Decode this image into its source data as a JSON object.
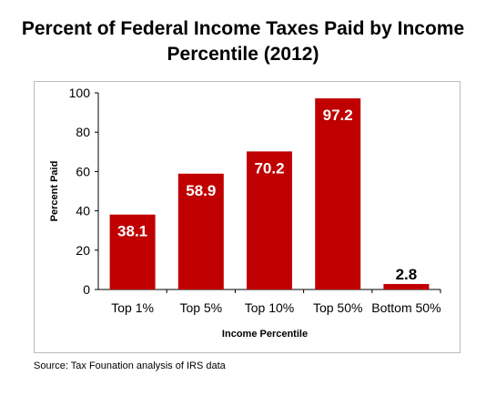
{
  "chart_data": {
    "type": "bar",
    "title_line1": "Percent of Federal Income Taxes Paid by Income",
    "title_line2": "Percentile (2012)",
    "categories": [
      "Top 1%",
      "Top 5%",
      "Top 10%",
      "Top 50%",
      "Bottom 50%"
    ],
    "values": [
      38.1,
      58.9,
      70.2,
      97.2,
      2.8
    ],
    "value_labels": [
      "38.1",
      "58.9",
      "70.2",
      "97.2",
      "2.8"
    ],
    "xlabel": "Income Percentile",
    "ylabel": "Percent Paid",
    "ylim": [
      0,
      100
    ],
    "yticks": [
      "0",
      "20",
      "40",
      "60",
      "80",
      "100"
    ],
    "grid": false,
    "bar_color": "#c00000"
  },
  "source": "Source: Tax Founation analysis of IRS data"
}
